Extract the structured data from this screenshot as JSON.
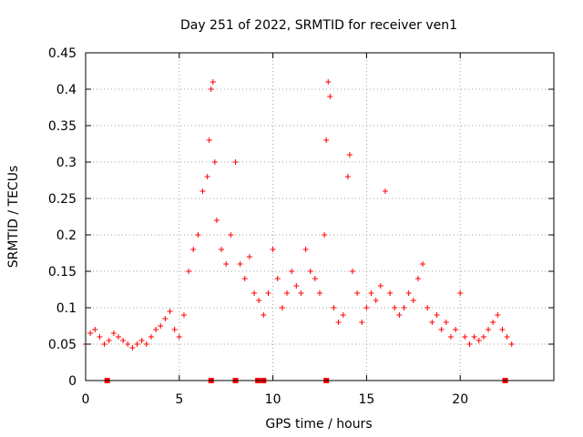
{
  "chart_data": {
    "type": "scatter",
    "title": "Day 251 of 2022, SRMTID for receiver ven1",
    "xlabel": "GPS time / hours",
    "ylabel": "SRMTID / TECUs",
    "xlim": [
      0,
      25
    ],
    "ylim": [
      0,
      0.45
    ],
    "xticks": [
      0,
      5,
      10,
      15,
      20
    ],
    "xtick_labels": [
      "0",
      "5",
      "10",
      "15",
      "20"
    ],
    "yticks": [
      0,
      0.05,
      0.1,
      0.15,
      0.2,
      0.25,
      0.3,
      0.35,
      0.4,
      0.45
    ],
    "ytick_labels": [
      "0",
      "0.05",
      "0.1",
      "0.15",
      "0.2",
      "0.25",
      "0.3",
      "0.35",
      "0.4",
      "0.45"
    ],
    "grid": true,
    "marker": "plus",
    "color": "#ff0000",
    "series": [
      {
        "name": "SRMTID",
        "x": [
          0.0,
          0.25,
          0.5,
          0.75,
          1.0,
          1.25,
          1.5,
          1.75,
          2.0,
          2.25,
          2.5,
          2.75,
          3.0,
          3.25,
          3.5,
          3.75,
          4.0,
          4.25,
          4.5,
          4.75,
          5.0,
          5.25,
          5.5,
          5.75,
          6.0,
          6.25,
          6.5,
          6.6,
          6.7,
          6.8,
          6.9,
          7.0,
          7.25,
          7.5,
          7.75,
          8.0,
          8.25,
          8.5,
          8.75,
          9.0,
          9.25,
          9.5,
          9.75,
          10.0,
          10.25,
          10.5,
          10.75,
          11.0,
          11.25,
          11.5,
          11.75,
          12.0,
          12.25,
          12.5,
          12.75,
          12.85,
          12.95,
          13.05,
          13.25,
          13.5,
          13.75,
          14.0,
          14.1,
          14.25,
          14.5,
          14.75,
          15.0,
          15.25,
          15.5,
          15.75,
          16.0,
          16.25,
          16.5,
          16.75,
          17.0,
          17.25,
          17.5,
          17.75,
          18.0,
          18.25,
          18.5,
          18.75,
          19.0,
          19.25,
          19.5,
          19.75,
          20.0,
          20.25,
          20.5,
          20.75,
          21.0,
          21.25,
          21.5,
          21.75,
          22.0,
          22.25,
          22.5,
          22.75
        ],
        "y": [
          0.05,
          0.065,
          0.07,
          0.06,
          0.05,
          0.055,
          0.065,
          0.06,
          0.055,
          0.05,
          0.045,
          0.05,
          0.055,
          0.05,
          0.06,
          0.07,
          0.075,
          0.085,
          0.095,
          0.07,
          0.06,
          0.09,
          0.15,
          0.18,
          0.2,
          0.26,
          0.28,
          0.33,
          0.4,
          0.41,
          0.3,
          0.22,
          0.18,
          0.16,
          0.2,
          0.3,
          0.16,
          0.14,
          0.17,
          0.12,
          0.11,
          0.09,
          0.12,
          0.18,
          0.14,
          0.1,
          0.12,
          0.15,
          0.13,
          0.12,
          0.18,
          0.15,
          0.14,
          0.12,
          0.2,
          0.33,
          0.41,
          0.39,
          0.1,
          0.08,
          0.09,
          0.28,
          0.31,
          0.15,
          0.12,
          0.08,
          0.1,
          0.12,
          0.11,
          0.13,
          0.26,
          0.12,
          0.1,
          0.09,
          0.1,
          0.12,
          0.11,
          0.14,
          0.16,
          0.1,
          0.08,
          0.09,
          0.07,
          0.08,
          0.06,
          0.07,
          0.12,
          0.06,
          0.05,
          0.06,
          0.055,
          0.06,
          0.07,
          0.08,
          0.09,
          0.07,
          0.06,
          0.05
        ]
      }
    ],
    "baseline_markers_x": [
      1.15,
      6.7,
      8.0,
      9.2,
      9.5,
      12.85,
      22.4
    ]
  }
}
